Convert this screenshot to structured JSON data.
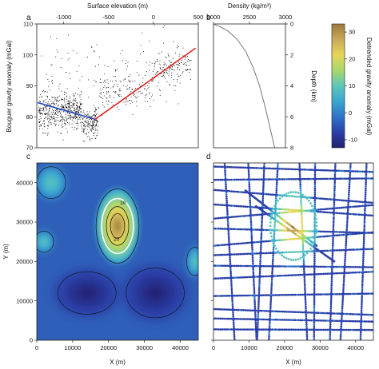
{
  "chart_data": [
    {
      "panel": "a",
      "type": "scatter",
      "xlabel_top": "Surface elevation (m)",
      "xticks_top": [
        "-1000",
        "-500",
        "0",
        "500"
      ],
      "xlim": [
        -1300,
        500
      ],
      "ylabel": "Bouguer gravity anomaly (mGal)",
      "yticks": [
        "70",
        "80",
        "90",
        "100",
        "110"
      ],
      "ylim": [
        70,
        110
      ],
      "series": [
        {
          "kind": "points",
          "color": "#000000",
          "clusters": [
            {
              "x_range": [
                -1280,
                -800
              ],
              "y_center": 82,
              "y_spread": 5,
              "count": 520
            },
            {
              "x_range": [
                -800,
                -620
              ],
              "y_center": 78,
              "y_spread": 4,
              "count": 180
            },
            {
              "x_range": [
                -620,
                0
              ],
              "y_center": 88,
              "y_spread": 5,
              "count": 160
            },
            {
              "x_range": [
                0,
                420
              ],
              "y_center": 96,
              "y_spread": 4,
              "count": 140
            },
            {
              "x_range": [
                -1250,
                300
              ],
              "y_center": 95,
              "y_spread": 9,
              "count": 120
            }
          ]
        },
        {
          "kind": "fit",
          "color": "#2448c0",
          "x": [
            -1290,
            -650
          ],
          "y": [
            84.6,
            79.2
          ]
        },
        {
          "kind": "fit",
          "color": "#e22222",
          "x": [
            -650,
            470
          ],
          "y": [
            79.2,
            102.2
          ]
        }
      ]
    },
    {
      "panel": "b",
      "type": "line",
      "xlabel_top": "Density (kg/m³)",
      "xticks_top": [
        "2000",
        "2500",
        "3000"
      ],
      "xlim": [
        2000,
        3000
      ],
      "ylabel": "Depth (km)",
      "yticks": [
        "0",
        "2",
        "4",
        "6",
        "8"
      ],
      "ylim": [
        0,
        8
      ],
      "series": [
        {
          "kind": "profile",
          "color": "#777777",
          "density": [
            2000,
            2100,
            2200,
            2330,
            2450,
            2550,
            2640,
            2720,
            2800,
            2850
          ],
          "depth": [
            0.0,
            0.2,
            0.45,
            1.0,
            1.8,
            2.8,
            4.0,
            5.4,
            7.0,
            8.0
          ]
        }
      ]
    },
    {
      "panel": "c",
      "type": "heatmap",
      "xlabel": "X (m)",
      "ylabel": "Y (m)",
      "xticks": [
        "0",
        "10000",
        "20000",
        "30000",
        "40000"
      ],
      "yticks": [
        "0",
        "10000",
        "20000",
        "30000",
        "40000"
      ],
      "xlim": [
        0,
        45000
      ],
      "ylim": [
        0,
        45000
      ],
      "colorscale": [
        "#23206e",
        "#2a3fa8",
        "#2f74c8",
        "#3aa6d2",
        "#5cc7b8",
        "#a8d86a",
        "#e6d558",
        "#c8a95a",
        "#9b7b3b"
      ],
      "features": [
        {
          "kind": "high",
          "cx": 22500,
          "cy": 29000,
          "rx": 5200,
          "ry": 8200,
          "peak": 30
        },
        {
          "kind": "low",
          "cx": 14000,
          "cy": 12000,
          "rx": 9000,
          "ry": 6000,
          "peak": -12
        },
        {
          "kind": "low",
          "cx": 33000,
          "cy": 12000,
          "rx": 9000,
          "ry": 7000,
          "peak": -11
        },
        {
          "kind": "moderate",
          "cx": 4000,
          "cy": 40000,
          "rx": 4500,
          "ry": 4500,
          "peak": 6
        },
        {
          "kind": "moderate",
          "cx": 44000,
          "cy": 20000,
          "rx": 2500,
          "ry": 4000,
          "peak": 4
        },
        {
          "kind": "moderate",
          "cx": 2000,
          "cy": 25000,
          "rx": 3000,
          "ry": 3000,
          "peak": 2
        }
      ],
      "contour_labels": [
        {
          "text": "20",
          "x": 22200,
          "y": 25200
        },
        {
          "text": "10",
          "x": 24000,
          "y": 34500
        }
      ]
    },
    {
      "panel": "d",
      "type": "scatter",
      "xlabel": "X (m)",
      "xticks": [
        "0",
        "10000",
        "20000",
        "30000",
        "40000"
      ],
      "yticks": [
        "0",
        "10000",
        "20000",
        "30000",
        "40000"
      ],
      "xlim": [
        0,
        45000
      ],
      "ylim": [
        0,
        45000
      ],
      "description_series": "flight-line gravity samples coloured by detrended anomaly",
      "color_low": "#23206e",
      "color_high": "#e6d558"
    }
  ],
  "colorbar": {
    "label": "Detrended gravity anomaly (mGal)",
    "ticks": [
      "30",
      "20",
      "10",
      "0",
      "-10"
    ],
    "range": [
      -13,
      33
    ],
    "colors": [
      "#23206e",
      "#2a3fa8",
      "#2f74c8",
      "#3aa6d2",
      "#5cc7b8",
      "#a8d86a",
      "#e6d558",
      "#c8a95a",
      "#9b7b3b"
    ]
  },
  "panel_labels": [
    "a",
    "b",
    "c",
    "d"
  ]
}
